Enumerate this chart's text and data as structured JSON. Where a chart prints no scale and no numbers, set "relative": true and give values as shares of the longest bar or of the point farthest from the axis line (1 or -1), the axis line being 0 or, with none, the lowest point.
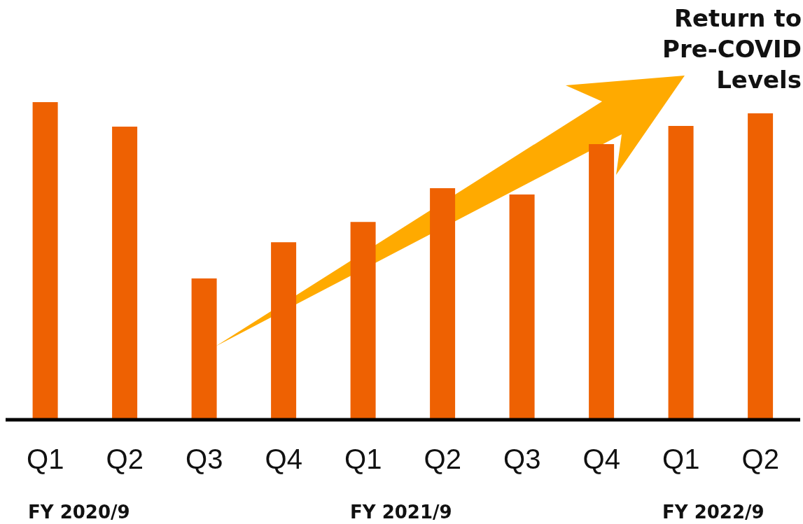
{
  "chart_data": {
    "type": "bar",
    "relative": true,
    "categories": [
      "Q1",
      "Q2",
      "Q3",
      "Q4",
      "Q1",
      "Q2",
      "Q3",
      "Q4",
      "Q1",
      "Q2"
    ],
    "values": [
      1,
      0.923,
      0.445,
      0.559,
      0.623,
      0.729,
      0.709,
      0.868,
      0.925,
      0.965
    ],
    "color": "#ee6102",
    "annotations": [
      "FY 2020/9",
      "FY 2021/9",
      "FY 2022/9",
      "Return to Pre-COVID Levels"
    ]
  }
}
